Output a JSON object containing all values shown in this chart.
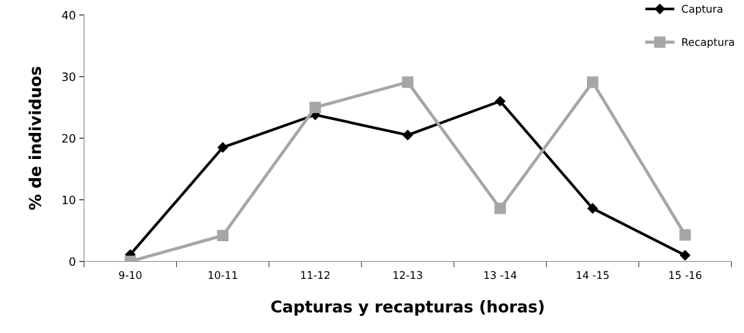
{
  "chart_data": {
    "type": "line",
    "xlabel": "Capturas y recapturas (horas)",
    "ylabel": "% de individuos",
    "categories": [
      "9-10",
      "10-11",
      "11-12",
      "12-13",
      "13 -14",
      "14 -15",
      "15 -16"
    ],
    "series": [
      {
        "name": "Captura",
        "color": "#000000",
        "marker": "diamond",
        "values": [
          1.1,
          18.5,
          23.8,
          20.5,
          26.0,
          8.6,
          1.0
        ]
      },
      {
        "name": "Recaptura",
        "color": "#a6a6a6",
        "marker": "square",
        "values": [
          0,
          4.2,
          25.0,
          29.1,
          8.6,
          29.1,
          4.3
        ]
      }
    ],
    "ylim": [
      0,
      40
    ],
    "yticks": [
      0,
      10,
      20,
      30,
      40
    ],
    "grid": false,
    "legend": "top right",
    "line_style": "solid"
  }
}
